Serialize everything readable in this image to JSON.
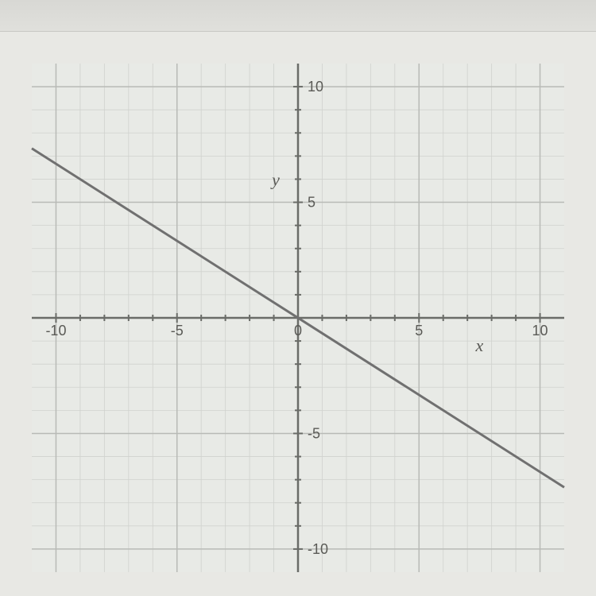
{
  "chart": {
    "type": "line",
    "xlim": [
      -11,
      11
    ],
    "ylim": [
      -11,
      11
    ],
    "x_ticks": [
      -10,
      -5,
      0,
      5,
      10
    ],
    "y_ticks": [
      -10,
      -5,
      5,
      10
    ],
    "x_tick_labels": [
      "-10",
      "-5",
      "0",
      "5",
      "10"
    ],
    "y_tick_labels": [
      "-10",
      "-5",
      "5",
      "10"
    ],
    "x_label": "x",
    "y_label": "y",
    "minor_grid_step": 1,
    "major_grid_step": 5,
    "minor_grid_color": "#d0d2ce",
    "major_grid_color": "#b8bab6",
    "axis_color": "#6a6c68",
    "tick_color": "#6a6c68",
    "label_fontsize": 18,
    "tick_fontsize": 18,
    "axis_label_fontsize": 22,
    "background_color": "#e8eae6",
    "line": {
      "slope": -0.666,
      "y_intercept": 0,
      "points": [
        [
          -11,
          7.33
        ],
        [
          11,
          -7.33
        ]
      ],
      "color": "#707070",
      "width": 3
    }
  },
  "top_band_color": "#d8d8d4"
}
